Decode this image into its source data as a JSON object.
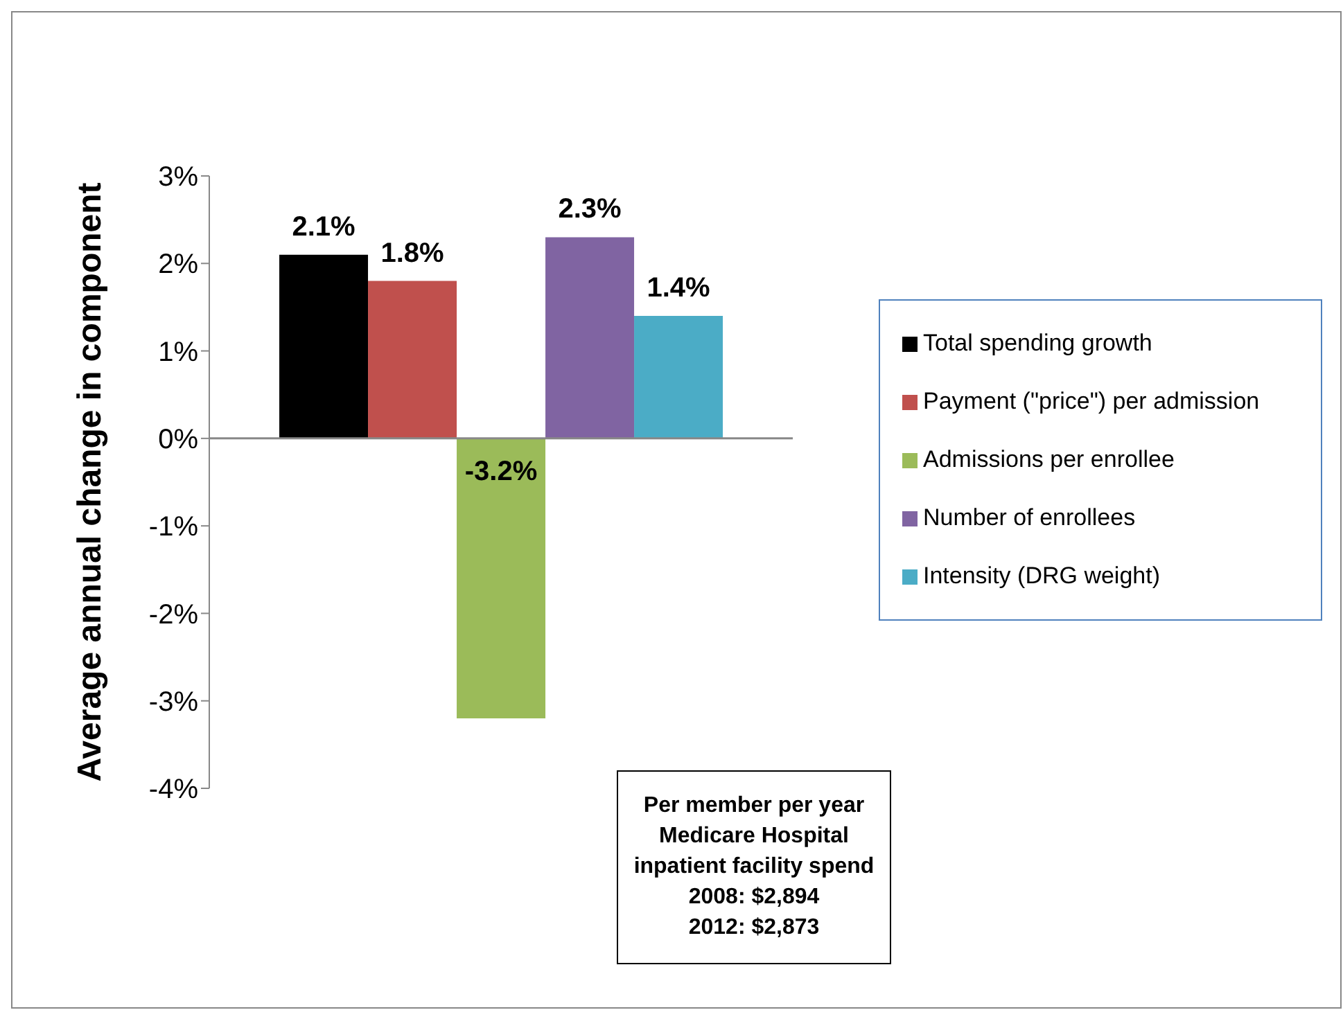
{
  "chart_data": {
    "type": "bar",
    "ylabel": "Average annual change in component",
    "categories": [
      null
    ],
    "series": [
      {
        "name": "Total spending growth",
        "color": "#000000",
        "values": [
          2.1
        ],
        "value_labels": [
          "2.1%"
        ]
      },
      {
        "name": "Payment (\"price\") per admission",
        "color": "#c0504d",
        "values": [
          1.8
        ],
        "value_labels": [
          "1.8%"
        ]
      },
      {
        "name": "Admissions per enrollee",
        "color": "#9bbb59",
        "values": [
          -3.2
        ],
        "value_labels": [
          "-3.2%"
        ]
      },
      {
        "name": "Number of enrollees",
        "color": "#8064a2",
        "values": [
          2.3
        ],
        "value_labels": [
          "2.3%"
        ]
      },
      {
        "name": "Intensity (DRG weight)",
        "color": "#4bacc6",
        "values": [
          1.4
        ],
        "value_labels": [
          "1.4%"
        ]
      }
    ],
    "ylim": [
      -4,
      3
    ],
    "yticks": [
      {
        "value": -4,
        "label": "-4%"
      },
      {
        "value": -3,
        "label": "-3%"
      },
      {
        "value": -2,
        "label": "-2%"
      },
      {
        "value": -1,
        "label": "-1%"
      },
      {
        "value": 0,
        "label": "0%"
      },
      {
        "value": 1,
        "label": "1%"
      },
      {
        "value": 2,
        "label": "2%"
      },
      {
        "value": 3,
        "label": "3%"
      }
    ],
    "legend": "right",
    "annotations": [
      "Per member per year\nMedicare Hospital\ninpatient facility spend\n2008: $2,894\n2012: $2,873"
    ]
  }
}
